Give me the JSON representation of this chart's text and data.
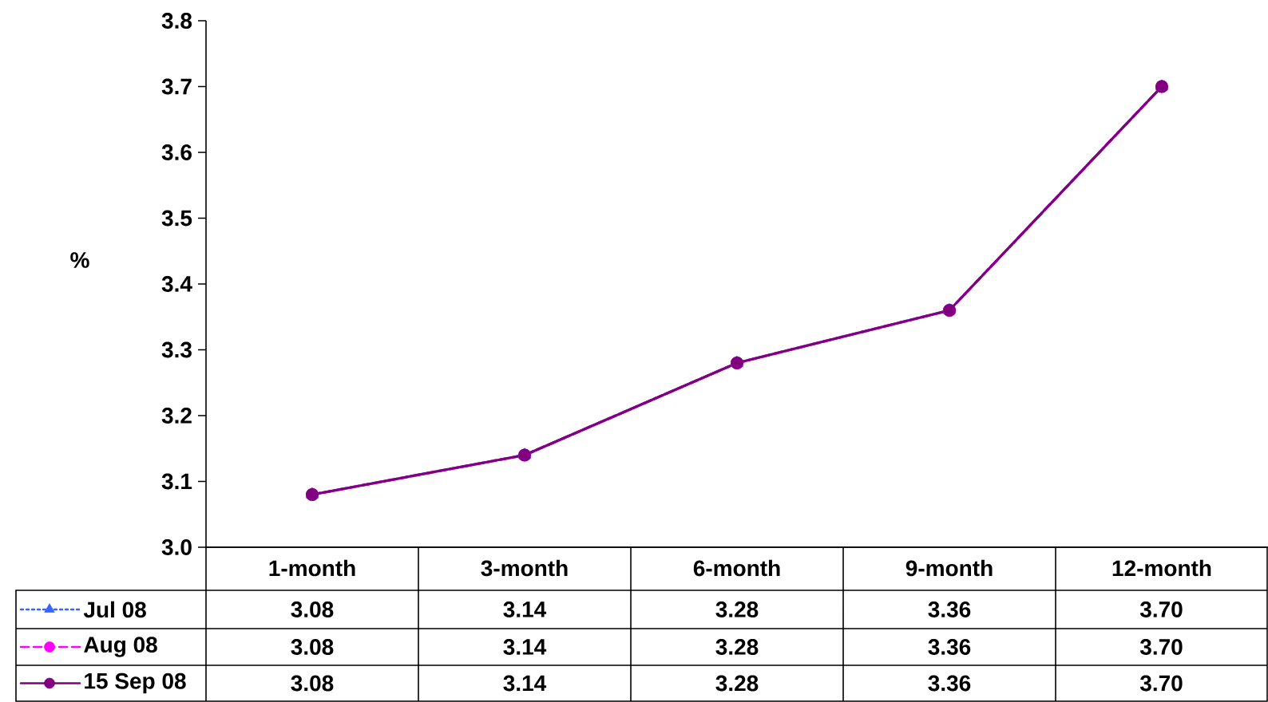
{
  "chart_data": {
    "type": "line",
    "ylabel": "%",
    "categories": [
      "1-month",
      "3-month",
      "6-month",
      "9-month",
      "12-month"
    ],
    "series": [
      {
        "name": "Jul 08",
        "color": "#3366ff",
        "marker": "triangle",
        "line_style": "dotted",
        "values": [
          3.08,
          3.14,
          3.28,
          3.36,
          3.7
        ],
        "value_labels": [
          "3.08",
          "3.14",
          "3.28",
          "3.36",
          "3.70"
        ]
      },
      {
        "name": "Aug 08",
        "color": "#ff00ff",
        "marker": "circle",
        "line_style": "dashed",
        "values": [
          3.08,
          3.14,
          3.28,
          3.36,
          3.7
        ],
        "value_labels": [
          "3.08",
          "3.14",
          "3.28",
          "3.36",
          "3.70"
        ]
      },
      {
        "name": "15 Sep 08",
        "color": "#800080",
        "marker": "circle",
        "line_style": "solid",
        "values": [
          3.08,
          3.14,
          3.28,
          3.36,
          3.7
        ],
        "value_labels": [
          "3.08",
          "3.14",
          "3.28",
          "3.36",
          "3.70"
        ]
      }
    ],
    "ylim": [
      3.0,
      3.8
    ],
    "yticks": [
      {
        "value": 3.0,
        "label": "3.0"
      },
      3.1,
      3.2,
      3.3,
      3.4,
      3.5,
      3.6,
      3.7,
      3.8
    ],
    "legend": "bottom left"
  }
}
